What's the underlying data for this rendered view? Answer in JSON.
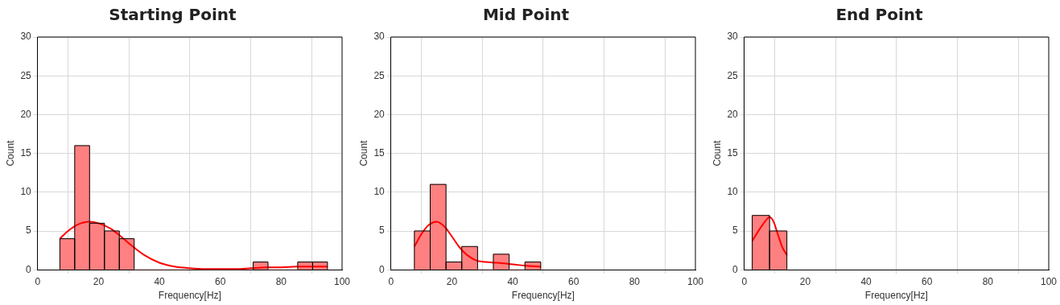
{
  "chart_data": [
    {
      "type": "histogram",
      "title": "Starting Point",
      "xlabel": "Frequency[Hz]",
      "ylabel": "Count",
      "color": "#ff8080",
      "bins": [
        7.3,
        12.18,
        17.07,
        21.95,
        26.83,
        31.72,
        36.6,
        41.48,
        46.37,
        51.25,
        56.13,
        61.02,
        65.9,
        70.78,
        75.67,
        80.55,
        85.43,
        90.32,
        95.2
      ],
      "values": [
        4,
        16,
        6,
        5,
        4,
        0,
        0,
        0,
        0,
        0,
        0,
        0,
        0,
        1,
        0,
        0,
        1,
        1
      ],
      "series": [
        {
          "type": "line",
          "color": "#ff0000",
          "x": [
            7.3,
            10,
            13,
            17,
            20,
            24,
            27,
            30,
            35,
            40,
            45,
            50,
            55,
            60,
            65,
            70,
            75,
            80,
            85,
            90,
            95.2
          ],
          "values": [
            4.0,
            5.0,
            5.8,
            6.2,
            6.0,
            5.3,
            4.4,
            3.4,
            1.9,
            0.9,
            0.4,
            0.2,
            0.1,
            0.1,
            0.1,
            0.2,
            0.3,
            0.3,
            0.4,
            0.4,
            0.4
          ]
        }
      ],
      "xlim": [
        0,
        100
      ],
      "xticks": [
        0,
        20,
        40,
        60,
        80,
        100
      ],
      "ylim": [
        0,
        30
      ],
      "yticks": [
        0,
        5,
        10,
        15,
        20,
        25,
        30
      ],
      "grid": true
    },
    {
      "type": "histogram",
      "title": "Mid Point",
      "xlabel": "Frequency[Hz]",
      "ylabel": "Count",
      "color": "#ff8080",
      "bins": [
        7.7,
        12.89,
        18.08,
        23.26,
        28.45,
        33.64,
        38.83,
        44.01,
        49.2
      ],
      "values": [
        5,
        11,
        1,
        3,
        0,
        2,
        0,
        1
      ],
      "series": [
        {
          "type": "line",
          "color": "#ff0000",
          "x": [
            7.7,
            10,
            12.5,
            15,
            17.5,
            20,
            22.5,
            25,
            28,
            31,
            35,
            40,
            45,
            49.2
          ],
          "values": [
            3.0,
            4.6,
            5.8,
            6.2,
            5.6,
            4.3,
            2.9,
            1.9,
            1.2,
            1.0,
            0.9,
            0.7,
            0.5,
            0.4
          ]
        }
      ],
      "xlim": [
        0,
        100
      ],
      "xticks": [
        0,
        20,
        40,
        60,
        80,
        100
      ],
      "ylim": [
        0,
        30
      ],
      "yticks": [
        0,
        5,
        10,
        15,
        20,
        25,
        30
      ],
      "grid": true
    },
    {
      "type": "histogram",
      "title": "End Point",
      "xlabel": "Frequency[Hz]",
      "ylabel": "Count",
      "color": "#ff8080",
      "bins": [
        2.6,
        8.3,
        14.0
      ],
      "values": [
        7,
        5
      ],
      "series": [
        {
          "type": "line",
          "color": "#ff0000",
          "x": [
            2.6,
            4,
            5.5,
            7,
            8.2,
            9.5,
            11,
            12.5,
            14.0
          ],
          "values": [
            3.7,
            4.6,
            5.5,
            6.3,
            6.8,
            6.3,
            4.6,
            2.9,
            1.9
          ]
        }
      ],
      "xlim": [
        0,
        100
      ],
      "xticks": [
        0,
        20,
        40,
        60,
        80,
        100
      ],
      "ylim": [
        0,
        30
      ],
      "yticks": [
        0,
        5,
        10,
        15,
        20,
        25,
        30
      ],
      "grid": true
    }
  ]
}
